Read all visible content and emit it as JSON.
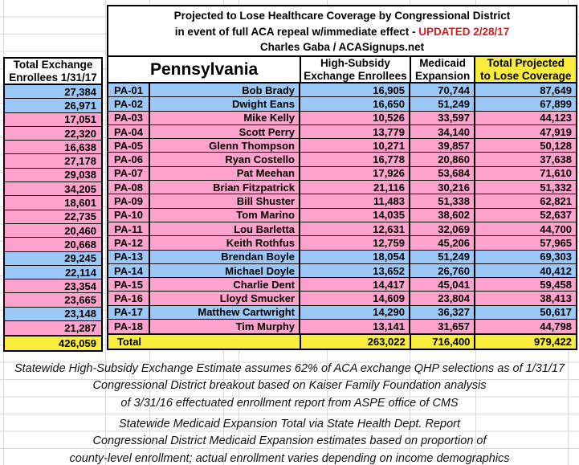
{
  "title": {
    "line1": "Projected to Lose Healthcare Coverage by Congressional District",
    "line2_black": "in event of full ACA repeal w/immediate effect -",
    "line2_red": "UPDATED 2/28/17",
    "line3": "Charles Gaba / ACASignups.net"
  },
  "left": {
    "header_line1": "Total Exchange",
    "header_line2": "Enrollees 1/31/17",
    "total": "426,059"
  },
  "state": "Pennsylvania",
  "columns": {
    "subsidy_line1": "High-Subsidy",
    "subsidy_line2": "Exchange Enrollees",
    "medicaid_line1": "Medicaid",
    "medicaid_line2": "Expansion",
    "projected_line1": "Total Projected",
    "projected_line2": "to Lose Coverage"
  },
  "total_label": "Total",
  "totals": {
    "subsidy": "263,022",
    "medicaid": "716,400",
    "projected": "979,422"
  },
  "rows": [
    {
      "district": "PA-01",
      "rep": "Bob Brady",
      "exchange": "27,384",
      "subsidy": "16,905",
      "medicaid": "70,744",
      "projected": "87,649",
      "row_color": "blue"
    },
    {
      "district": "PA-02",
      "rep": "Dwight Eans",
      "exchange": "26,971",
      "subsidy": "16,650",
      "medicaid": "51,249",
      "projected": "67,899",
      "row_color": "blue"
    },
    {
      "district": "PA-03",
      "rep": "Mike Kelly",
      "exchange": "17,051",
      "subsidy": "10,526",
      "medicaid": "33,597",
      "projected": "44,123",
      "row_color": "pink"
    },
    {
      "district": "PA-04",
      "rep": "Scott Perry",
      "exchange": "22,320",
      "subsidy": "13,779",
      "medicaid": "34,140",
      "projected": "47,919",
      "row_color": "pink"
    },
    {
      "district": "PA-05",
      "rep": "Glenn Thompson",
      "exchange": "16,638",
      "subsidy": "10,271",
      "medicaid": "39,857",
      "projected": "50,128",
      "row_color": "pink"
    },
    {
      "district": "PA-06",
      "rep": "Ryan Costello",
      "exchange": "27,178",
      "subsidy": "16,778",
      "medicaid": "20,860",
      "projected": "37,638",
      "row_color": "pink"
    },
    {
      "district": "PA-07",
      "rep": "Pat Meehan",
      "exchange": "29,038",
      "subsidy": "17,926",
      "medicaid": "53,684",
      "projected": "71,610",
      "row_color": "pink"
    },
    {
      "district": "PA-08",
      "rep": "Brian Fitzpatrick",
      "exchange": "34,205",
      "subsidy": "21,116",
      "medicaid": "30,216",
      "projected": "51,332",
      "row_color": "pink"
    },
    {
      "district": "PA-09",
      "rep": "Bill Shuster",
      "exchange": "18,601",
      "subsidy": "11,483",
      "medicaid": "51,338",
      "projected": "62,821",
      "row_color": "pink"
    },
    {
      "district": "PA-10",
      "rep": "Tom Marino",
      "exchange": "22,735",
      "subsidy": "14,035",
      "medicaid": "38,602",
      "projected": "52,637",
      "row_color": "pink"
    },
    {
      "district": "PA-11",
      "rep": "Lou Barletta",
      "exchange": "20,460",
      "subsidy": "12,631",
      "medicaid": "32,069",
      "projected": "44,700",
      "row_color": "pink"
    },
    {
      "district": "PA-12",
      "rep": "Keith Rothfus",
      "exchange": "20,668",
      "subsidy": "12,759",
      "medicaid": "45,206",
      "projected": "57,965",
      "row_color": "pink"
    },
    {
      "district": "PA-13",
      "rep": "Brendan Boyle",
      "exchange": "29,245",
      "subsidy": "18,054",
      "medicaid": "51,249",
      "projected": "69,303",
      "row_color": "blue"
    },
    {
      "district": "PA-14",
      "rep": "Michael Doyle",
      "exchange": "22,114",
      "subsidy": "13,652",
      "medicaid": "26,760",
      "projected": "40,412",
      "row_color": "blue"
    },
    {
      "district": "PA-15",
      "rep": "Charlie Dent",
      "exchange": "23,354",
      "subsidy": "14,417",
      "medicaid": "45,041",
      "projected": "59,458",
      "row_color": "pink"
    },
    {
      "district": "PA-16",
      "rep": "Lloyd Smucker",
      "exchange": "23,665",
      "subsidy": "14,609",
      "medicaid": "23,804",
      "projected": "38,413",
      "row_color": "pink"
    },
    {
      "district": "PA-17",
      "rep": "Matthew Cartwright",
      "exchange": "23,148",
      "subsidy": "14,290",
      "medicaid": "36,327",
      "projected": "50,617",
      "row_color": "blue"
    },
    {
      "district": "PA-18",
      "rep": "Tim Murphy",
      "exchange": "21,287",
      "subsidy": "13,141",
      "medicaid": "31,657",
      "projected": "44,798",
      "row_color": "pink"
    }
  ],
  "notes": {
    "block1": [
      "Statewide High-Subsidy Exchange Estimate assumes 62% of ACA exchange QHP selections as of 1/31/17",
      "Congressional District breakout based on Kaiser Family Foundation analysis",
      "of 3/31/16 effectuated enrollment report from ASPE office of CMS"
    ],
    "block2": [
      "Statewide Medicaid Expansion Total via State Health Dept. Report",
      "Congressional District Medicaid Expansion estimates based on proportion of",
      "county-level enrollment; actual enrollment varies depending on income demographics"
    ]
  },
  "colors": {
    "blue": "#9cc8f7",
    "pink": "#fca2cc",
    "yellow": "#f8ec3d",
    "red": "#d81a1f",
    "grid": "#d9d9d9"
  }
}
